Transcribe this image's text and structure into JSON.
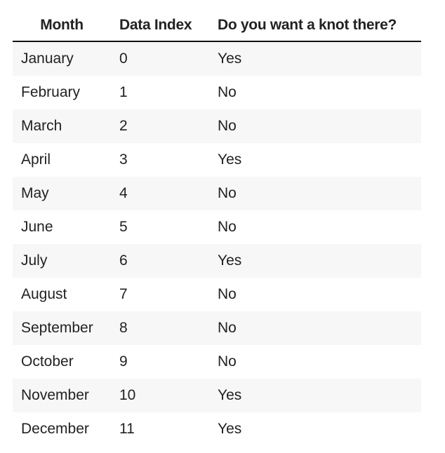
{
  "table": {
    "headers": [
      "Month",
      "Data Index",
      "Do you want a knot there?"
    ],
    "rows": [
      [
        "January",
        "0",
        "Yes"
      ],
      [
        "February",
        "1",
        "No"
      ],
      [
        "March",
        "2",
        "No"
      ],
      [
        "April",
        "3",
        "Yes"
      ],
      [
        "May",
        "4",
        "No"
      ],
      [
        "June",
        "5",
        "No"
      ],
      [
        "July",
        "6",
        "Yes"
      ],
      [
        "August",
        "7",
        "No"
      ],
      [
        "September",
        "8",
        "No"
      ],
      [
        "October",
        "9",
        "No"
      ],
      [
        "November",
        "10",
        "Yes"
      ],
      [
        "December",
        "11",
        "Yes"
      ]
    ]
  },
  "colors": {
    "stripe": "#f7f7f7",
    "header_rule": "#111111",
    "text": "#222222"
  }
}
